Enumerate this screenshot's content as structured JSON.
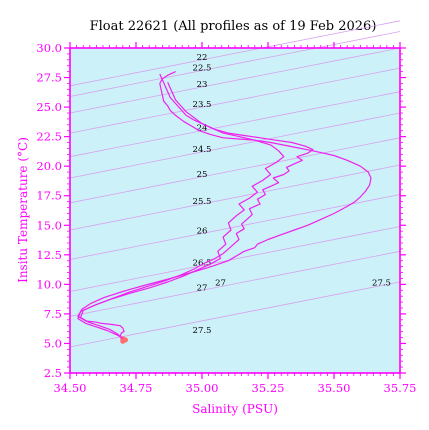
{
  "chart_data": {
    "type": "line",
    "title": "Float 22621  (All profiles as of 19 Feb 2026)",
    "xlabel": "Salinity (PSU)",
    "ylabel": "Insitu Temperature (°C)",
    "xlim": [
      34.5,
      35.75
    ],
    "ylim": [
      2.5,
      30.0
    ],
    "x_ticks": [
      "34.50",
      "34.75",
      "35.00",
      "35.25",
      "35.50",
      "35.75"
    ],
    "y_ticks": [
      "2.5",
      "5.0",
      "7.5",
      "10.0",
      "12.5",
      "15.0",
      "17.5",
      "20.0",
      "22.5",
      "25.0",
      "27.5",
      "30.0"
    ],
    "grid": false,
    "background_color": "#cdf1f8",
    "axis_color": "#ff00ff",
    "series_color": "#ee22ee",
    "deep_end_color": "#ff6f6f",
    "density_contours": {
      "color": "#d7a1ee",
      "labels": [
        {
          "text": "22",
          "s": 35.0,
          "t": 29.0
        },
        {
          "text": "22.5",
          "s": 35.0,
          "t": 28.1
        },
        {
          "text": "23",
          "s": 35.0,
          "t": 26.7
        },
        {
          "text": "23.5",
          "s": 35.0,
          "t": 25.0
        },
        {
          "text": "24",
          "s": 35.0,
          "t": 23.0
        },
        {
          "text": "24.5",
          "s": 35.0,
          "t": 21.2
        },
        {
          "text": "25",
          "s": 35.0,
          "t": 19.1
        },
        {
          "text": "25.5",
          "s": 35.0,
          "t": 16.8
        },
        {
          "text": "26",
          "s": 35.0,
          "t": 14.3
        },
        {
          "text": "26.5",
          "s": 35.0,
          "t": 11.6
        },
        {
          "text": "27",
          "s": 35.0,
          "t": 9.5
        },
        {
          "text": "27",
          "s": 35.07,
          "t": 9.9
        },
        {
          "text": "27.5",
          "s": 35.68,
          "t": 9.9
        },
        {
          "text": "27.5",
          "s": 35.0,
          "t": 5.9
        }
      ]
    },
    "series": [
      {
        "s": [
          34.7,
          34.69,
          34.695,
          34.705,
          34.7,
          34.69,
          34.66,
          34.62,
          34.6,
          34.56,
          34.53,
          34.545,
          34.58,
          34.63,
          34.7,
          34.78,
          34.88,
          34.96,
          35.02,
          35.06,
          35.1,
          35.13,
          35.16,
          35.2,
          35.21,
          35.25,
          35.3,
          35.35,
          35.4,
          35.45,
          35.5,
          35.55,
          35.58,
          35.6,
          35.62,
          35.635,
          35.64,
          35.63,
          35.6,
          35.55,
          35.5,
          35.42,
          35.33,
          35.26,
          35.2,
          35.14,
          35.08,
          35.03,
          34.99,
          34.96,
          34.93,
          34.9,
          34.88,
          34.87,
          34.855,
          34.85,
          34.845,
          34.84,
          34.85,
          34.87,
          34.89,
          34.9
        ],
        "t": [
          5.2,
          5.6,
          5.9,
          6.0,
          6.3,
          6.5,
          6.6,
          6.7,
          6.8,
          6.9,
          7.3,
          7.9,
          8.4,
          8.9,
          9.4,
          9.9,
          10.5,
          11.0,
          11.4,
          11.7,
          12.0,
          12.4,
          12.8,
          13.1,
          13.4,
          13.8,
          14.2,
          14.6,
          15.0,
          15.5,
          16.0,
          16.6,
          17.0,
          17.4,
          17.9,
          18.4,
          19.0,
          19.5,
          20.0,
          20.5,
          20.9,
          21.3,
          21.7,
          22.0,
          22.2,
          22.3,
          22.4,
          22.7,
          23.0,
          23.4,
          23.8,
          24.3,
          24.7,
          25.1,
          25.5,
          26.0,
          26.5,
          27.0,
          27.4,
          27.7,
          27.9,
          28.0
        ]
      },
      {
        "s": [
          34.7,
          34.68,
          34.65,
          34.61,
          34.57,
          34.54,
          34.55,
          34.6,
          34.66,
          34.72,
          34.79,
          34.86,
          34.92,
          34.97,
          35.01,
          35.05,
          35.08,
          35.1,
          35.12,
          35.14,
          35.13,
          35.16,
          35.15,
          35.17,
          35.19,
          35.18,
          35.22,
          35.21,
          35.24,
          35.23,
          35.26,
          35.29,
          35.27,
          35.31,
          35.33,
          35.32,
          35.35,
          35.38,
          35.36,
          35.4,
          35.42,
          35.39,
          35.34,
          35.28,
          35.22,
          35.16,
          35.1,
          35.05,
          35.01,
          34.97,
          34.94,
          34.92,
          34.9,
          34.88,
          34.87,
          34.86,
          34.85,
          34.84
        ],
        "t": [
          5.4,
          5.8,
          6.2,
          6.5,
          6.8,
          7.2,
          7.8,
          8.3,
          8.8,
          9.3,
          9.8,
          10.3,
          10.8,
          11.3,
          11.8,
          12.2,
          12.6,
          13.0,
          13.4,
          13.8,
          14.3,
          14.7,
          15.1,
          15.5,
          15.9,
          16.4,
          16.8,
          17.2,
          17.6,
          18.0,
          18.3,
          18.6,
          19.0,
          19.3,
          19.6,
          19.9,
          20.2,
          20.5,
          20.8,
          21.1,
          21.4,
          21.7,
          22.0,
          22.2,
          22.4,
          22.6,
          22.8,
          23.1,
          23.5,
          23.9,
          24.3,
          24.8,
          25.3,
          25.8,
          26.3,
          26.8,
          27.3,
          27.8
        ]
      },
      {
        "s": [
          34.71,
          34.68,
          34.64,
          34.6,
          34.56,
          34.53,
          34.54,
          34.59,
          34.65,
          34.72,
          34.8,
          34.87,
          34.93,
          34.98,
          35.03,
          35.07,
          35.06,
          35.09,
          35.08,
          35.11,
          35.1,
          35.13,
          35.16,
          35.14,
          35.18,
          35.21,
          35.19,
          35.23,
          35.26,
          35.24,
          35.28,
          35.31,
          35.29,
          35.26,
          35.2,
          35.14,
          35.08,
          35.04,
          35.0,
          34.97,
          34.94,
          34.92,
          34.9,
          34.89,
          34.88,
          34.87
        ],
        "t": [
          5.3,
          5.7,
          6.1,
          6.4,
          6.7,
          7.1,
          7.7,
          8.2,
          8.7,
          9.2,
          9.7,
          10.2,
          10.7,
          11.2,
          11.7,
          12.2,
          12.8,
          13.4,
          14.0,
          14.6,
          15.2,
          15.8,
          16.3,
          16.8,
          17.3,
          17.8,
          18.3,
          18.8,
          19.3,
          19.8,
          20.3,
          20.8,
          21.3,
          21.8,
          22.2,
          22.5,
          22.8,
          23.2,
          23.6,
          24.1,
          24.6,
          25.1,
          25.6,
          26.1,
          26.6,
          27.1
        ]
      }
    ]
  }
}
